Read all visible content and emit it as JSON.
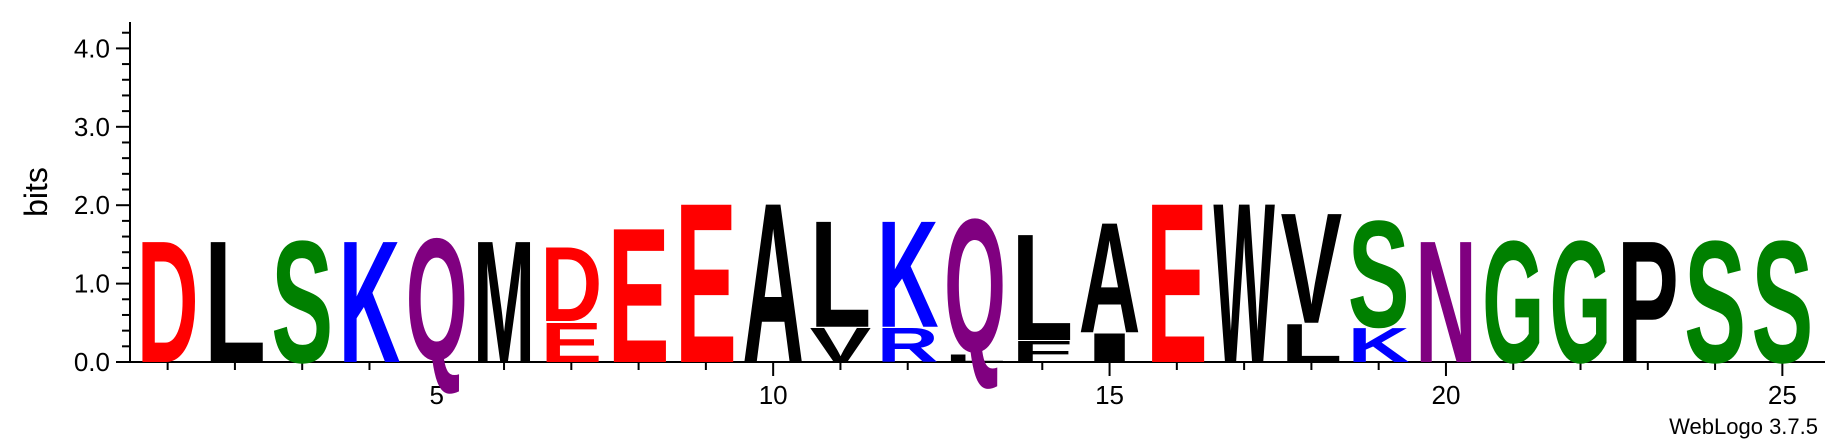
{
  "chart_data": {
    "type": "sequence-logo",
    "ylabel": "bits",
    "ylim": [
      0,
      4.2
    ],
    "y_ticks": [
      "0.0",
      "1.0",
      "2.0",
      "3.0",
      "4.0"
    ],
    "y_tick_values": [
      0,
      1,
      2,
      3,
      4
    ],
    "x_ticks": [
      "5",
      "10",
      "15",
      "20",
      "25"
    ],
    "x_tick_values": [
      5,
      10,
      15,
      20,
      25
    ],
    "positions": [
      1,
      25
    ],
    "footer": "WebLogo 3.7.5",
    "colors": {
      "acidic": "#ff0000",
      "hydrophobic": "#000000",
      "polar": "#008000",
      "basic": "#0000ff",
      "neutral": "#800080"
    },
    "columns": [
      {
        "position": 1,
        "letters": [
          {
            "aa": "D",
            "height": 1.6,
            "color": "#ff0000"
          }
        ]
      },
      {
        "position": 2,
        "letters": [
          {
            "aa": "L",
            "height": 1.6,
            "color": "#000000"
          }
        ]
      },
      {
        "position": 3,
        "letters": [
          {
            "aa": "S",
            "height": 1.6,
            "color": "#008000"
          }
        ]
      },
      {
        "position": 4,
        "letters": [
          {
            "aa": "K",
            "height": 1.6,
            "color": "#0000ff"
          }
        ]
      },
      {
        "position": 5,
        "letters": [
          {
            "aa": "Q",
            "height": 1.6,
            "color": "#800080"
          }
        ]
      },
      {
        "position": 6,
        "letters": [
          {
            "aa": "M",
            "height": 1.6,
            "color": "#000000"
          }
        ]
      },
      {
        "position": 7,
        "letters": [
          {
            "aa": "E",
            "height": 0.52,
            "color": "#ff0000"
          },
          {
            "aa": "D",
            "height": 0.98,
            "color": "#ff0000"
          }
        ]
      },
      {
        "position": 8,
        "letters": [
          {
            "aa": "E",
            "height": 1.77,
            "color": "#ff0000"
          }
        ]
      },
      {
        "position": 9,
        "letters": [
          {
            "aa": "E",
            "height": 2.1,
            "color": "#ff0000"
          }
        ]
      },
      {
        "position": 10,
        "letters": [
          {
            "aa": "A",
            "height": 2.1,
            "color": "#000000"
          }
        ]
      },
      {
        "position": 11,
        "letters": [
          {
            "aa": "V",
            "height": 0.45,
            "color": "#000000"
          },
          {
            "aa": "L",
            "height": 1.4,
            "color": "#000000"
          }
        ]
      },
      {
        "position": 12,
        "letters": [
          {
            "aa": "R",
            "height": 0.45,
            "color": "#0000ff"
          },
          {
            "aa": "K",
            "height": 1.4,
            "color": "#0000ff"
          }
        ]
      },
      {
        "position": 13,
        "letters": [
          {
            "aa": "L",
            "height": 0.1,
            "color": "#000000"
          },
          {
            "aa": "Q",
            "height": 1.75,
            "color": "#800080"
          }
        ]
      },
      {
        "position": 14,
        "letters": [
          {
            "aa": "F",
            "height": 0.28,
            "color": "#000000"
          },
          {
            "aa": "L",
            "height": 1.4,
            "color": "#000000"
          }
        ]
      },
      {
        "position": 15,
        "letters": [
          {
            "aa": "I",
            "height": 0.38,
            "color": "#000000"
          },
          {
            "aa": "A",
            "height": 1.45,
            "color": "#000000"
          }
        ]
      },
      {
        "position": 16,
        "letters": [
          {
            "aa": "E",
            "height": 2.1,
            "color": "#ff0000"
          }
        ]
      },
      {
        "position": 17,
        "letters": [
          {
            "aa": "W",
            "height": 2.1,
            "color": "#000000"
          }
        ]
      },
      {
        "position": 18,
        "letters": [
          {
            "aa": "L",
            "height": 0.5,
            "color": "#000000"
          },
          {
            "aa": "V",
            "height": 1.45,
            "color": "#000000"
          }
        ]
      },
      {
        "position": 19,
        "letters": [
          {
            "aa": "K",
            "height": 0.45,
            "color": "#0000ff"
          },
          {
            "aa": "S",
            "height": 1.4,
            "color": "#008000"
          }
        ]
      },
      {
        "position": 20,
        "letters": [
          {
            "aa": "N",
            "height": 1.6,
            "color": "#800080"
          }
        ]
      },
      {
        "position": 21,
        "letters": [
          {
            "aa": "G",
            "height": 1.6,
            "color": "#008000"
          }
        ]
      },
      {
        "position": 22,
        "letters": [
          {
            "aa": "G",
            "height": 1.6,
            "color": "#008000"
          }
        ]
      },
      {
        "position": 23,
        "letters": [
          {
            "aa": "P",
            "height": 1.6,
            "color": "#000000"
          }
        ]
      },
      {
        "position": 24,
        "letters": [
          {
            "aa": "S",
            "height": 1.6,
            "color": "#008000"
          }
        ]
      },
      {
        "position": 25,
        "letters": [
          {
            "aa": "S",
            "height": 1.6,
            "color": "#008000"
          }
        ]
      }
    ]
  }
}
